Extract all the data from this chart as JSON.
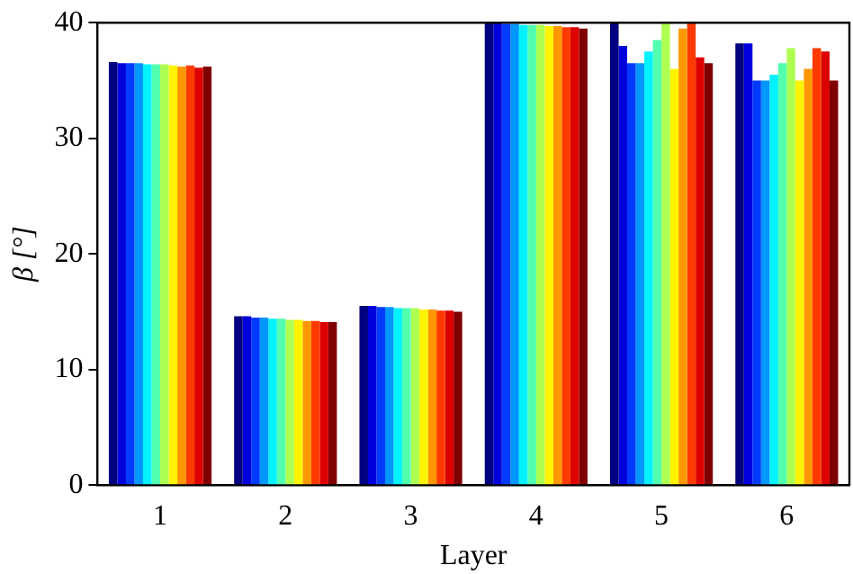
{
  "chart_data": {
    "type": "bar",
    "xlabel": "Layer",
    "ylabel": "β [°]",
    "categories": [
      "1",
      "2",
      "3",
      "4",
      "5",
      "6"
    ],
    "series": [
      {
        "color": "#000080",
        "values": [
          36.6,
          14.6,
          15.5,
          40,
          40,
          38.2
        ]
      },
      {
        "color": "#0000dc",
        "values": [
          36.5,
          14.6,
          15.5,
          40,
          38,
          38.2
        ]
      },
      {
        "color": "#003aff",
        "values": [
          36.5,
          14.5,
          15.4,
          39.9,
          36.5,
          35
        ]
      },
      {
        "color": "#0097ff",
        "values": [
          36.5,
          14.5,
          15.4,
          39.9,
          36.5,
          35
        ]
      },
      {
        "color": "#00f3ff",
        "values": [
          36.4,
          14.4,
          15.3,
          39.8,
          37.5,
          35.5
        ]
      },
      {
        "color": "#51ffae",
        "values": [
          36.4,
          14.4,
          15.3,
          39.8,
          38.5,
          36.5
        ]
      },
      {
        "color": "#aeff51",
        "values": [
          36.4,
          14.3,
          15.3,
          39.8,
          40,
          37.8
        ]
      },
      {
        "color": "#fff300",
        "values": [
          36.3,
          14.3,
          15.2,
          39.7,
          36,
          35
        ]
      },
      {
        "color": "#ff9700",
        "values": [
          36.2,
          14.2,
          15.2,
          39.7,
          39.5,
          36
        ]
      },
      {
        "color": "#ff3a00",
        "values": [
          36.3,
          14.2,
          15.1,
          39.6,
          40,
          37.8
        ]
      },
      {
        "color": "#dc0000",
        "values": [
          36.1,
          14.1,
          15.1,
          39.6,
          37,
          37.5
        ]
      },
      {
        "color": "#800000",
        "values": [
          36.2,
          14.1,
          15.0,
          39.5,
          36.5,
          35
        ]
      }
    ],
    "ylim": [
      0,
      40
    ],
    "yticks": [
      0,
      10,
      20,
      30,
      40
    ],
    "grid": false,
    "legend": false
  }
}
